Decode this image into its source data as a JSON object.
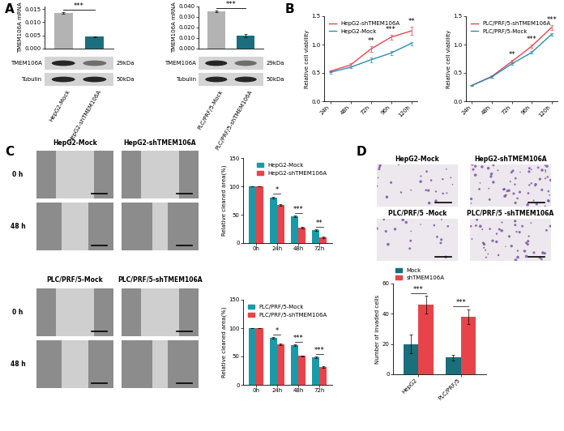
{
  "panel_labels": [
    "A",
    "B",
    "C",
    "D"
  ],
  "blots": [
    {
      "rows": [
        {
          "label": "TMEM106A",
          "size": "29kDa"
        },
        {
          "label": "Tubulin",
          "size": "50kDa"
        }
      ]
    },
    {
      "rows": [
        {
          "label": "TMEM106A",
          "size": "29kDa"
        },
        {
          "label": "Tubulin",
          "size": "50kDa"
        }
      ]
    }
  ],
  "wound_images": [
    {
      "columns": [
        "HepG2-Mock",
        "HepG2-shTMEM106A"
      ],
      "rows": [
        "0 h",
        "48 h"
      ]
    },
    {
      "columns": [
        "PLC/PRF/5-Mock",
        "PLC/PRF/5-shTMEM106A"
      ],
      "rows": [
        "0 h",
        "48 h"
      ]
    }
  ],
  "invasion_images": [
    [
      "HepG2-Mock",
      "HepG2-shTMEM106A"
    ],
    [
      "PLC/PRF/5 -Mock",
      "PLC/PRF/5 -shTMEM106A"
    ]
  ],
  "chart_data": [
    {
      "type": "bar",
      "y_label": "TMEM106A mRNA",
      "categories": [
        "HepG2-Mock",
        "HepG2-shTMEM106A"
      ],
      "values": [
        0.0135,
        0.0045
      ],
      "errors": [
        0.0004,
        0.0002
      ],
      "colors": [
        "#b3b3b3",
        "#1b6e7b"
      ],
      "tick_labels": "y",
      "ylim": [
        0,
        0.016
      ],
      "yticks": [
        {
          "value": 0,
          "label": "0.000"
        },
        {
          "value": 0.005,
          "label": "0.005"
        },
        {
          "value": 0.01,
          "label": "0.010"
        },
        {
          "value": 0.015,
          "label": "0.015"
        }
      ],
      "annotations": [
        {
          "text": "***"
        }
      ]
    },
    {
      "type": "bar",
      "y_label": "TMEM106A mRNA",
      "categories": [
        "PLC/PRF/5-Mock",
        "PLC/PRF/5-shTMEM106A"
      ],
      "values": [
        0.0355,
        0.012
      ],
      "errors": [
        0.0008,
        0.0015
      ],
      "colors": [
        "#b3b3b3",
        "#1b6e7b"
      ],
      "tick_labels": "y",
      "ylim": [
        0,
        0.04
      ],
      "yticks": [
        {
          "value": 0,
          "label": "0.000"
        },
        {
          "value": 0.01,
          "label": "0.010"
        },
        {
          "value": 0.02,
          "label": "0.020"
        },
        {
          "value": 0.03,
          "label": "0.030"
        },
        {
          "value": 0.04,
          "label": "0.040"
        }
      ],
      "annotations": [
        {
          "text": "***"
        }
      ]
    },
    {
      "type": "line",
      "y_label": "Relative cell viability",
      "categories": [
        "24h",
        "48h",
        "72h",
        "96h",
        "120h"
      ],
      "series": [
        {
          "name": "HepG2-shTMEM106A",
          "color": "#e8474c",
          "values": [
            0.53,
            0.64,
            0.92,
            1.13,
            1.24
          ],
          "errors": [
            0.02,
            0.03,
            0.05,
            0.04,
            0.07
          ]
        },
        {
          "name": "HepG2-Mock",
          "color": "#2a8fb0",
          "values": [
            0.51,
            0.6,
            0.73,
            0.85,
            1.02
          ],
          "errors": [
            0.02,
            0.02,
            0.04,
            0.03,
            0.03
          ]
        }
      ],
      "ylim": [
        0,
        1.5
      ],
      "yticks": [
        {
          "value": 0,
          "label": "0.0"
        },
        {
          "value": 0.5,
          "label": "0.5"
        },
        {
          "value": 1,
          "label": "1.0"
        },
        {
          "value": 1.5,
          "label": "1.5"
        }
      ],
      "legend": "upper left",
      "annotations": [
        {
          "category": "72h",
          "text": "**"
        },
        {
          "category": "96h",
          "text": "***"
        },
        {
          "category": "120h",
          "text": "**"
        }
      ]
    },
    {
      "type": "line",
      "y_label": "Relative cell viability",
      "categories": [
        "24h",
        "48h",
        "72h",
        "96h",
        "120h"
      ],
      "series": [
        {
          "name": "PLC/PRF/5-shTMEM106A",
          "color": "#e8474c",
          "values": [
            0.28,
            0.44,
            0.7,
            0.97,
            1.3
          ],
          "errors": [
            0.01,
            0.02,
            0.03,
            0.03,
            0.04
          ]
        },
        {
          "name": "PLC/PRF/5-Mock",
          "color": "#2a8fb0",
          "values": [
            0.28,
            0.43,
            0.66,
            0.86,
            1.18
          ],
          "errors": [
            0.01,
            0.01,
            0.02,
            0.02,
            0.02
          ]
        }
      ],
      "ylim": [
        0,
        1.5
      ],
      "yticks": [
        {
          "value": 0,
          "label": "0.0"
        },
        {
          "value": 0.5,
          "label": "0.5"
        },
        {
          "value": 1,
          "label": "1.0"
        },
        {
          "value": 1.5,
          "label": "1.5"
        }
      ],
      "legend": "upper left",
      "annotations": [
        {
          "category": "72h",
          "text": "**"
        },
        {
          "category": "96h",
          "text": "***"
        },
        {
          "category": "120h",
          "text": "***"
        }
      ]
    },
    {
      "type": "bar",
      "y_label": "Relative cleaned area(%)",
      "categories": [
        "0h",
        "24h",
        "48h",
        "72h"
      ],
      "series": [
        {
          "name": "HepG2-Mock",
          "color": "#1a9aa8",
          "values": [
            100,
            80,
            47,
            23
          ],
          "errors": [
            0,
            2,
            1.5,
            1.5
          ]
        },
        {
          "name": "HepG2-shTMEM106A",
          "color": "#e8434a",
          "values": [
            100,
            67,
            27,
            10
          ],
          "errors": [
            0,
            1.5,
            1.5,
            1
          ]
        }
      ],
      "ylim": [
        0,
        150
      ],
      "yticks": [
        0,
        50,
        100,
        150
      ],
      "legend": "upper right",
      "annotations": [
        {
          "category": "24h",
          "text": "*"
        },
        {
          "category": "48h",
          "text": "***"
        },
        {
          "category": "72h",
          "text": "**"
        }
      ]
    },
    {
      "type": "bar",
      "y_label": "Relative cleaned area(%)",
      "categories": [
        "0h",
        "24h",
        "48h",
        "72h"
      ],
      "series": [
        {
          "name": "PLC/PRF/5-Mock",
          "color": "#1a9aa8",
          "values": [
            100,
            83,
            70,
            48
          ],
          "errors": [
            0,
            1.5,
            1.5,
            1.5
          ]
        },
        {
          "name": "PLC/PRF/5-shTMEM106A",
          "color": "#e8434a",
          "values": [
            100,
            72,
            51,
            32
          ],
          "errors": [
            0,
            1.5,
            1,
            1.5
          ]
        }
      ],
      "ylim": [
        0,
        150
      ],
      "yticks": [
        0,
        50,
        100,
        150
      ],
      "legend": "upper right",
      "annotations": [
        {
          "category": "24h",
          "text": "*"
        },
        {
          "category": "48h",
          "text": "***"
        },
        {
          "category": "72h",
          "text": "***"
        }
      ]
    },
    {
      "type": "bar",
      "y_label": "Number of invaded cells",
      "categories": [
        "HepG2",
        "PLC/PRF/5"
      ],
      "series": [
        {
          "name": "Mock",
          "color": "#1b6e7b",
          "values": [
            20,
            11
          ],
          "errors": [
            6,
            2
          ]
        },
        {
          "name": "shTMEM106A",
          "color": "#e8434a",
          "values": [
            46,
            38
          ],
          "errors": [
            6,
            5
          ]
        }
      ],
      "ylim": [
        0,
        60
      ],
      "yticks": [
        0,
        20,
        40,
        60
      ],
      "legend": "upper left",
      "annotations": [
        {
          "category": "HepG2",
          "text": "***"
        },
        {
          "category": "PLC/PRF/5",
          "text": "***"
        }
      ]
    }
  ]
}
